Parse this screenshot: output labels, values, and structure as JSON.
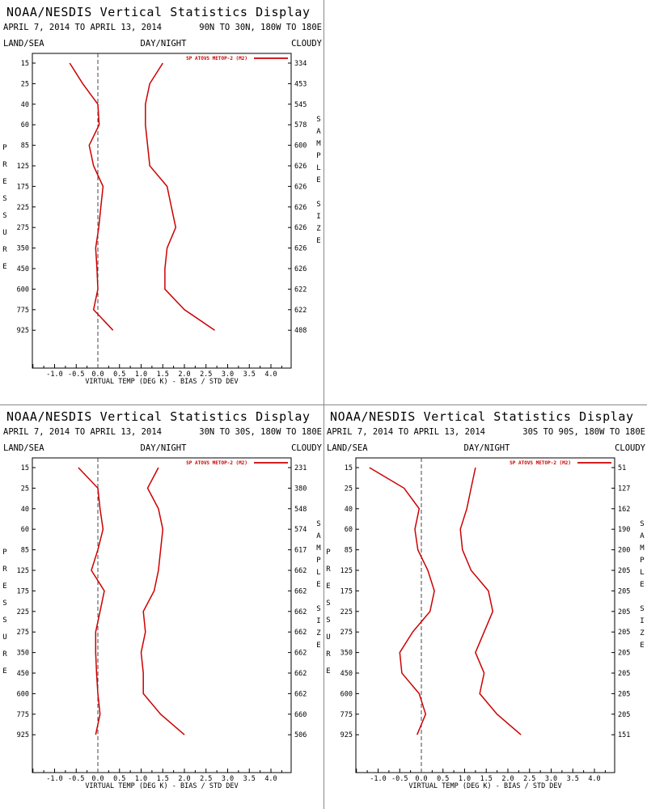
{
  "panels": [
    {
      "title": "NOAA/NESDIS Vertical Statistics Display",
      "date_range": "APRIL 7, 2014 TO APRIL 13, 2014",
      "region": "90N TO 30N, 180W TO 180E",
      "land_sea": "LAND/SEA",
      "day_night": "DAY/NIGHT",
      "cloudy": "CLOUDY"
    },
    {
      "title": "NOAA/NESDIS Vertical Statistics Display",
      "date_range": "APRIL 7, 2014 TO APRIL 13, 2014",
      "region": "30N TO 30S, 180W TO 180E",
      "land_sea": "LAND/SEA",
      "day_night": "DAY/NIGHT",
      "cloudy": "CLOUDY"
    },
    {
      "title": "NOAA/NESDIS Vertical Statistics Display",
      "date_range": "APRIL 7, 2014 TO APRIL 13, 2014",
      "region": "30S TO 90S, 180W TO 180E",
      "land_sea": "LAND/SEA",
      "day_night": "DAY/NIGHT",
      "cloudy": "CLOUDY"
    }
  ],
  "chart_data": [
    {
      "type": "line",
      "xlabel": "VIRTUAL TEMP (DEG K) - BIAS / STD DEV",
      "ylabel": "PRESSURE",
      "y2label": "SAMPLE SIZE",
      "x_ticks": [
        -1.0,
        -0.5,
        0.0,
        0.5,
        1.0,
        1.5,
        2.0,
        2.5,
        3.0,
        3.5,
        4.0
      ],
      "x_tick_labels": [
        "-1.0",
        "-0.5",
        "0.0",
        "0.5",
        "1.0",
        "1.5",
        "2.0",
        "2.5",
        "3.0",
        "3.5",
        "4.0"
      ],
      "xlim": [
        -1.5,
        4.4
      ],
      "pressure_levels": [
        "15",
        "25",
        "40",
        "60",
        "85",
        "125",
        "175",
        "225",
        "275",
        "350",
        "450",
        "600",
        "775",
        "925"
      ],
      "legend": "SP ATOVS METOP-2 (M2)",
      "series": [
        {
          "name": "SP ATOVS METOP-2 (M2)",
          "color": "#cc0000",
          "bias": [
            -0.65,
            -0.35,
            0.0,
            0.03,
            -0.2,
            -0.1,
            0.12,
            0.07,
            0.02,
            -0.05,
            -0.02,
            0.0,
            -0.1,
            0.35
          ],
          "std_dev": [
            1.5,
            1.2,
            1.1,
            1.1,
            1.15,
            1.2,
            1.6,
            1.7,
            1.8,
            1.6,
            1.55,
            1.55,
            2.0,
            2.7
          ],
          "sample_size": [
            "334",
            "453",
            "545",
            "578",
            "600",
            "626",
            "626",
            "626",
            "626",
            "626",
            "626",
            "622",
            "622",
            "408"
          ]
        }
      ]
    },
    {
      "type": "line",
      "xlabel": "VIRTUAL TEMP (DEG K) - BIAS / STD DEV",
      "ylabel": "PRESSURE",
      "y2label": "SAMPLE SIZE",
      "x_ticks": [
        -1.0,
        -0.5,
        0.0,
        0.5,
        1.0,
        1.5,
        2.0,
        2.5,
        3.0,
        3.5,
        4.0
      ],
      "x_tick_labels": [
        "-1.0",
        "-0.5",
        "0.0",
        "0.5",
        "1.0",
        "1.5",
        "2.0",
        "2.5",
        "3.0",
        "3.5",
        "4.0"
      ],
      "xlim": [
        -1.5,
        4.4
      ],
      "pressure_levels": [
        "15",
        "25",
        "40",
        "60",
        "85",
        "125",
        "175",
        "225",
        "275",
        "350",
        "450",
        "600",
        "775",
        "925"
      ],
      "legend": "SP ATOVS METOP-2 (M2)",
      "series": [
        {
          "name": "SP ATOVS METOP-2 (M2)",
          "color": "#cc0000",
          "bias": [
            -0.45,
            0.0,
            0.05,
            0.12,
            0.0,
            -0.15,
            0.15,
            0.05,
            -0.05,
            -0.05,
            -0.03,
            0.0,
            0.05,
            -0.05
          ],
          "std_dev": [
            1.4,
            1.15,
            1.4,
            1.5,
            1.45,
            1.4,
            1.3,
            1.05,
            1.1,
            1.0,
            1.05,
            1.05,
            1.45,
            2.0
          ],
          "sample_size": [
            "231",
            "380",
            "548",
            "574",
            "617",
            "662",
            "662",
            "662",
            "662",
            "662",
            "662",
            "662",
            "660",
            "506"
          ]
        }
      ]
    },
    {
      "type": "line",
      "xlabel": "VIRTUAL TEMP (DEG K) - BIAS / STD DEV",
      "ylabel": "PRESSURE",
      "y2label": "SAMPLE SIZE",
      "x_ticks": [
        -1.0,
        -0.5,
        0.0,
        0.5,
        1.0,
        1.5,
        2.0,
        2.5,
        3.0,
        3.5,
        4.0
      ],
      "x_tick_labels": [
        "-1.0",
        "-0.5",
        "0.0",
        "0.5",
        "1.0",
        "1.5",
        "2.0",
        "2.5",
        "3.0",
        "3.5",
        "4.0"
      ],
      "xlim": [
        -1.5,
        4.4
      ],
      "pressure_levels": [
        "15",
        "25",
        "40",
        "60",
        "85",
        "125",
        "175",
        "225",
        "275",
        "350",
        "450",
        "600",
        "775",
        "925"
      ],
      "legend": "SP ATOVS METOP-2 (M2)",
      "series": [
        {
          "name": "SP ATOVS METOP-2 (M2)",
          "color": "#cc0000",
          "bias": [
            -1.2,
            -0.4,
            -0.05,
            -0.15,
            -0.08,
            0.15,
            0.3,
            0.2,
            -0.2,
            -0.5,
            -0.45,
            -0.05,
            0.1,
            -0.1
          ],
          "std_dev": [
            1.25,
            1.15,
            1.05,
            0.9,
            0.95,
            1.15,
            1.55,
            1.65,
            1.45,
            1.25,
            1.45,
            1.35,
            1.75,
            2.3
          ],
          "sample_size": [
            "51",
            "127",
            "162",
            "190",
            "200",
            "205",
            "205",
            "205",
            "205",
            "205",
            "205",
            "205",
            "205",
            "151"
          ]
        }
      ]
    }
  ]
}
